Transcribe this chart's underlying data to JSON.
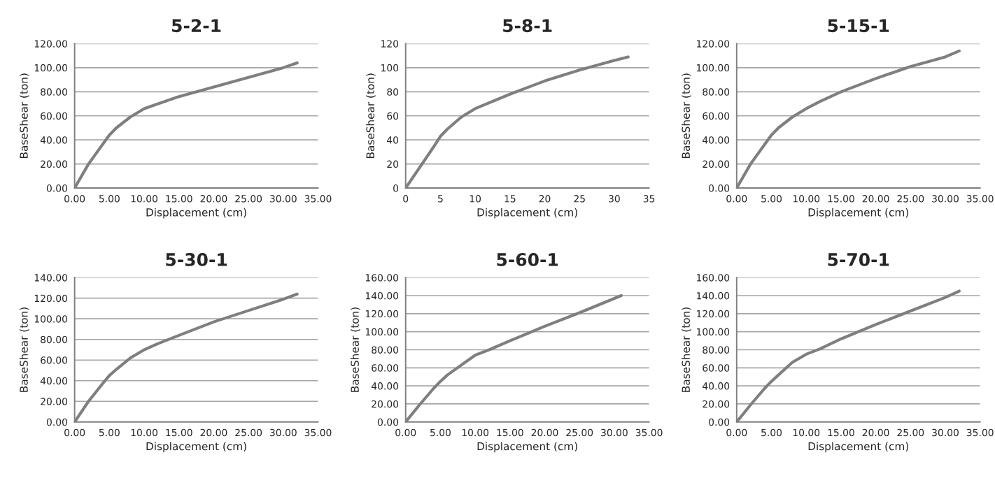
{
  "chart_data": [
    {
      "type": "line",
      "title": "5-2-1",
      "xlabel": "Displacement (cm)",
      "ylabel": "BaseShear (ton)",
      "grid": "y",
      "xlim": [
        0,
        35
      ],
      "ylim": [
        0,
        120
      ],
      "xticks": [
        {
          "value": 0,
          "label": "0.00"
        },
        {
          "value": 5,
          "label": "5.00"
        },
        {
          "value": 10,
          "label": "10.00"
        },
        {
          "value": 15,
          "label": "15.00"
        },
        {
          "value": 20,
          "label": "20.00"
        },
        {
          "value": 25,
          "label": "25.00"
        },
        {
          "value": 30,
          "label": "30.00"
        },
        {
          "value": 35,
          "label": "35.00"
        }
      ],
      "yticks": [
        {
          "value": 0,
          "label": "0.00"
        },
        {
          "value": 20,
          "label": "20.00"
        },
        {
          "value": 40,
          "label": "40.00"
        },
        {
          "value": 60,
          "label": "60.00"
        },
        {
          "value": 80,
          "label": "80.00"
        },
        {
          "value": 100,
          "label": "100.00"
        },
        {
          "value": 120,
          "label": "120.00"
        }
      ],
      "series": [
        {
          "color": "#7f7f7f",
          "x": [
            0,
            2,
            4,
            5,
            6,
            8,
            10,
            12,
            15,
            20,
            25,
            30,
            32
          ],
          "values": [
            0,
            20,
            36,
            44,
            50,
            59,
            66,
            70,
            76,
            84,
            92,
            100,
            104
          ]
        }
      ]
    },
    {
      "type": "line",
      "title": "5-8-1",
      "xlabel": "Displacement (cm)",
      "ylabel": "BaseShear (ton)",
      "grid": "y",
      "xlim": [
        0,
        35
      ],
      "ylim": [
        0,
        120
      ],
      "xticks": [
        0,
        5,
        10,
        15,
        20,
        25,
        30,
        35
      ],
      "yticks": [
        0,
        20,
        40,
        60,
        80,
        100,
        120
      ],
      "series": [
        {
          "color": "#7f7f7f",
          "x": [
            0,
            2,
            4,
            5,
            6,
            8,
            10,
            15,
            20,
            25,
            30,
            32
          ],
          "values": [
            0,
            17,
            34,
            43,
            49,
            59,
            66,
            78,
            89,
            98,
            106,
            109
          ]
        }
      ]
    },
    {
      "type": "line",
      "title": "5-15-1",
      "xlabel": "Displacement (cm)",
      "ylabel": "BaseShear (ton)",
      "grid": "y",
      "xlim": [
        0,
        35
      ],
      "ylim": [
        0,
        120
      ],
      "xticks": [
        {
          "value": 0,
          "label": "0.00"
        },
        {
          "value": 5,
          "label": "5.00"
        },
        {
          "value": 10,
          "label": "10.00"
        },
        {
          "value": 15,
          "label": "15.00"
        },
        {
          "value": 20,
          "label": "20.00"
        },
        {
          "value": 25,
          "label": "25.00"
        },
        {
          "value": 30,
          "label": "30.00"
        },
        {
          "value": 35,
          "label": "35.00"
        }
      ],
      "yticks": [
        {
          "value": 0,
          "label": "0.00"
        },
        {
          "value": 20,
          "label": "20.00"
        },
        {
          "value": 40,
          "label": "40.00"
        },
        {
          "value": 60,
          "label": "60.00"
        },
        {
          "value": 80,
          "label": "80.00"
        },
        {
          "value": 100,
          "label": "100.00"
        },
        {
          "value": 120,
          "label": "120.00"
        }
      ],
      "series": [
        {
          "color": "#7f7f7f",
          "x": [
            0,
            2,
            4,
            5,
            6,
            8,
            10,
            12,
            15,
            20,
            25,
            30,
            32
          ],
          "values": [
            0,
            20,
            36,
            44,
            50,
            59,
            66,
            72,
            80,
            91,
            101,
            109,
            114
          ]
        }
      ]
    },
    {
      "type": "line",
      "title": "5-30-1",
      "xlabel": "Displacement (cm)",
      "ylabel": "BaseShear (ton)",
      "grid": "y",
      "xlim": [
        0,
        35
      ],
      "ylim": [
        0,
        140
      ],
      "xticks": [
        {
          "value": 0,
          "label": "0.00"
        },
        {
          "value": 5,
          "label": "5.00"
        },
        {
          "value": 10,
          "label": "10.00"
        },
        {
          "value": 15,
          "label": "15.00"
        },
        {
          "value": 20,
          "label": "20.00"
        },
        {
          "value": 25,
          "label": "25.00"
        },
        {
          "value": 30,
          "label": "30.00"
        },
        {
          "value": 35,
          "label": "35.00"
        }
      ],
      "yticks": [
        {
          "value": 0,
          "label": "0.00"
        },
        {
          "value": 20,
          "label": "20.00"
        },
        {
          "value": 40,
          "label": "40.00"
        },
        {
          "value": 60,
          "label": "60.00"
        },
        {
          "value": 80,
          "label": "80.00"
        },
        {
          "value": 100,
          "label": "100.00"
        },
        {
          "value": 120,
          "label": "120.00"
        },
        {
          "value": 140,
          "label": "140.00"
        }
      ],
      "series": [
        {
          "color": "#7f7f7f",
          "x": [
            0,
            2,
            4,
            5,
            6,
            8,
            10,
            12,
            15,
            20,
            25,
            30,
            32
          ],
          "values": [
            0,
            20,
            37,
            45,
            51,
            62,
            70,
            76,
            84,
            97,
            108,
            119,
            124
          ]
        }
      ]
    },
    {
      "type": "line",
      "title": "5-60-1",
      "xlabel": "Displacement (cm)",
      "ylabel": "BaseShear (ton)",
      "grid": "y",
      "xlim": [
        0,
        35
      ],
      "ylim": [
        0,
        160
      ],
      "xticks": [
        {
          "value": 0,
          "label": "0.00"
        },
        {
          "value": 5,
          "label": "5.00"
        },
        {
          "value": 10,
          "label": "10.00"
        },
        {
          "value": 15,
          "label": "15.00"
        },
        {
          "value": 20,
          "label": "20.00"
        },
        {
          "value": 25,
          "label": "25.00"
        },
        {
          "value": 30,
          "label": "30.00"
        },
        {
          "value": 35,
          "label": "35.00"
        }
      ],
      "yticks": [
        {
          "value": 0,
          "label": "0.00"
        },
        {
          "value": 20,
          "label": "20.00"
        },
        {
          "value": 40,
          "label": "40.00"
        },
        {
          "value": 60,
          "label": "60.00"
        },
        {
          "value": 80,
          "label": "80.00"
        },
        {
          "value": 100,
          "label": "100.00"
        },
        {
          "value": 120,
          "label": "120.00"
        },
        {
          "value": 140,
          "label": "140.00"
        },
        {
          "value": 160,
          "label": "160.00"
        }
      ],
      "series": [
        {
          "color": "#7f7f7f",
          "x": [
            0,
            2,
            4,
            5,
            6,
            8,
            10,
            12,
            15,
            20,
            25,
            31
          ],
          "values": [
            0,
            19,
            37,
            45,
            52,
            63,
            74,
            80,
            90,
            106,
            121,
            140
          ]
        }
      ]
    },
    {
      "type": "line",
      "title": "5-70-1",
      "xlabel": "Displacement (cm)",
      "ylabel": "BaseShear (ton)",
      "grid": "y",
      "xlim": [
        0,
        35
      ],
      "ylim": [
        0,
        160
      ],
      "xticks": [
        {
          "value": 0,
          "label": "0.00"
        },
        {
          "value": 5,
          "label": "5.00"
        },
        {
          "value": 10,
          "label": "10.00"
        },
        {
          "value": 15,
          "label": "15.00"
        },
        {
          "value": 20,
          "label": "20.00"
        },
        {
          "value": 25,
          "label": "25.00"
        },
        {
          "value": 30,
          "label": "30.00"
        },
        {
          "value": 35,
          "label": "35.00"
        }
      ],
      "yticks": [
        {
          "value": 0,
          "label": "0.00"
        },
        {
          "value": 20,
          "label": "20.00"
        },
        {
          "value": 40,
          "label": "40.00"
        },
        {
          "value": 60,
          "label": "60.00"
        },
        {
          "value": 80,
          "label": "80.00"
        },
        {
          "value": 100,
          "label": "100.00"
        },
        {
          "value": 120,
          "label": "120.00"
        },
        {
          "value": 140,
          "label": "140.00"
        },
        {
          "value": 160,
          "label": "160.00"
        }
      ],
      "series": [
        {
          "color": "#7f7f7f",
          "x": [
            0,
            2,
            4,
            5,
            6,
            8,
            10,
            12,
            15,
            20,
            25,
            30,
            32
          ],
          "values": [
            0,
            19,
            37,
            45,
            52,
            66,
            75,
            81,
            92,
            108,
            123,
            138,
            145
          ]
        }
      ]
    }
  ]
}
